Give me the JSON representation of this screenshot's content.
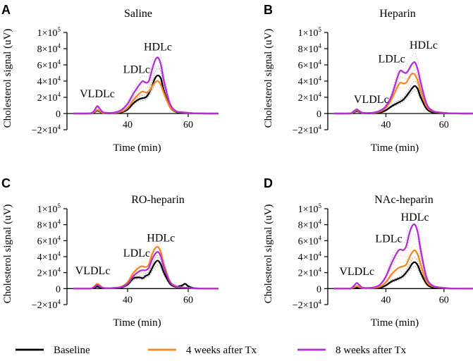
{
  "legend": [
    {
      "label": "Baseline",
      "color": "#000000"
    },
    {
      "label": "4 weeks after Tx",
      "color": "#F7861F"
    },
    {
      "label": "8 weeks after Tx",
      "color": "#B62DD6"
    }
  ],
  "chart_data": [
    {
      "type": "line",
      "letter": "A",
      "title": "Saline",
      "xlabel": "Time (min)",
      "ylabel": "Cholesterol signal (uV)",
      "xlim": [
        20,
        70
      ],
      "ylim": [
        -20000,
        100000
      ],
      "xticks": [
        "40",
        "60"
      ],
      "yticks": [
        {
          "value": -20000,
          "base": "−2×10",
          "exp": "4"
        },
        {
          "value": 0,
          "base": "0",
          "exp": ""
        },
        {
          "value": 20000,
          "base": "2×10",
          "exp": "4"
        },
        {
          "value": 40000,
          "base": "4×10",
          "exp": "4"
        },
        {
          "value": 60000,
          "base": "6×10",
          "exp": "4"
        },
        {
          "value": 80000,
          "base": "8×10",
          "exp": "4"
        },
        {
          "value": 100000,
          "base": "1×10",
          "exp": "5"
        }
      ],
      "annotations": [
        {
          "text": "VLDLc",
          "x": 30,
          "y": 20000
        },
        {
          "text": "LDLc",
          "x": 43,
          "y": 50000
        },
        {
          "text": "HDLc",
          "x": 50,
          "y": 78000
        }
      ],
      "series": [
        {
          "name": "Baseline",
          "color": "#000000",
          "x": [
            22,
            26,
            28,
            29,
            30,
            31,
            32,
            34,
            36,
            38,
            40,
            42,
            44,
            46,
            47,
            48,
            49,
            50,
            51,
            52,
            54,
            56,
            58,
            60,
            62,
            66,
            70
          ],
          "y": [
            0,
            0,
            200,
            1500,
            3500,
            2000,
            500,
            300,
            600,
            1500,
            5000,
            13000,
            18000,
            20000,
            25000,
            33000,
            43000,
            47000,
            43000,
            28000,
            8000,
            2000,
            1000,
            500,
            200,
            0,
            0
          ]
        },
        {
          "name": "4 weeks after Tx",
          "color": "#F7861F",
          "x": [
            22,
            26,
            28,
            29,
            30,
            31,
            32,
            34,
            36,
            38,
            40,
            42,
            44,
            45,
            46,
            47,
            48,
            49,
            50,
            51,
            52,
            54,
            56,
            58,
            60,
            62,
            66,
            70
          ],
          "y": [
            0,
            0,
            300,
            2000,
            4500,
            2500,
            800,
            500,
            1000,
            2500,
            7000,
            17000,
            25000,
            27000,
            26000,
            27000,
            33000,
            38000,
            40000,
            35000,
            25000,
            8000,
            2500,
            1500,
            800,
            300,
            0,
            0
          ]
        },
        {
          "name": "8 weeks after Tx",
          "color": "#B62DD6",
          "x": [
            22,
            26,
            28,
            29,
            30,
            31,
            32,
            34,
            36,
            38,
            40,
            42,
            44,
            45,
            46,
            47,
            48,
            49,
            50,
            51,
            52,
            54,
            56,
            58,
            60,
            62,
            66,
            70
          ],
          "y": [
            0,
            0,
            500,
            3500,
            9000,
            5000,
            1500,
            800,
            1500,
            4500,
            12000,
            25000,
            36000,
            40000,
            38000,
            40000,
            53000,
            65000,
            69000,
            60000,
            40000,
            12000,
            3000,
            1500,
            800,
            300,
            0,
            0
          ]
        }
      ]
    },
    {
      "type": "line",
      "letter": "B",
      "title": "Heparin",
      "xlabel": "Time (min)",
      "ylabel": "Cholesterol signal (uV)",
      "xlim": [
        20,
        70
      ],
      "ylim": [
        -20000,
        100000
      ],
      "xticks": [
        "40",
        "60"
      ],
      "yticks": [
        {
          "value": -20000,
          "base": "−2×10",
          "exp": "4"
        },
        {
          "value": 0,
          "base": "0",
          "exp": ""
        },
        {
          "value": 20000,
          "base": "2×10",
          "exp": "4"
        },
        {
          "value": 40000,
          "base": "4×10",
          "exp": "4"
        },
        {
          "value": 60000,
          "base": "6×10",
          "exp": "4"
        },
        {
          "value": 80000,
          "base": "8×10",
          "exp": "4"
        },
        {
          "value": 100000,
          "base": "1×10",
          "exp": "5"
        }
      ],
      "annotations": [
        {
          "text": "VLDLc",
          "x": 35,
          "y": 13000
        },
        {
          "text": "LDLc",
          "x": 42,
          "y": 63000
        },
        {
          "text": "HDLc",
          "x": 53,
          "y": 80000
        }
      ],
      "series": [
        {
          "name": "Baseline",
          "color": "#000000",
          "x": [
            22,
            26,
            28,
            29,
            30,
            31,
            32,
            34,
            36,
            38,
            40,
            42,
            44,
            46,
            48,
            49,
            50,
            51,
            52,
            54,
            56,
            58,
            60,
            62,
            66,
            70
          ],
          "y": [
            0,
            0,
            200,
            1500,
            3000,
            1800,
            500,
            300,
            600,
            1200,
            4000,
            9000,
            13000,
            17000,
            26000,
            31000,
            34000,
            30000,
            20000,
            6000,
            1500,
            800,
            400,
            200,
            0,
            0
          ]
        },
        {
          "name": "4 weeks after Tx",
          "color": "#F7861F",
          "x": [
            22,
            26,
            28,
            29,
            30,
            31,
            32,
            34,
            36,
            38,
            40,
            42,
            44,
            45,
            46,
            47,
            48,
            49,
            50,
            51,
            52,
            54,
            56,
            58,
            60,
            62,
            66,
            70
          ],
          "y": [
            0,
            0,
            300,
            2000,
            4000,
            2200,
            800,
            500,
            1000,
            2500,
            7000,
            18000,
            33000,
            38000,
            37000,
            38000,
            44000,
            49000,
            48000,
            40000,
            28000,
            9000,
            3000,
            1500,
            800,
            300,
            0,
            0
          ]
        },
        {
          "name": "8 weeks after Tx",
          "color": "#B62DD6",
          "x": [
            22,
            26,
            28,
            29,
            30,
            31,
            32,
            34,
            36,
            38,
            40,
            42,
            44,
            45,
            46,
            47,
            48,
            49,
            50,
            51,
            52,
            54,
            56,
            58,
            60,
            62,
            66,
            70
          ],
          "y": [
            0,
            0,
            400,
            3000,
            5000,
            2800,
            900,
            600,
            1300,
            3500,
            9000,
            22000,
            45000,
            53000,
            51000,
            50000,
            55000,
            61000,
            63000,
            54000,
            38000,
            12000,
            3500,
            1600,
            800,
            300,
            0,
            0
          ]
        }
      ]
    },
    {
      "type": "line",
      "letter": "C",
      "title": "RO-heparin",
      "xlabel": "Time (min)",
      "ylabel": "Cholesterol signal (uV)",
      "xlim": [
        20,
        70
      ],
      "ylim": [
        -20000,
        100000
      ],
      "xticks": [
        "40",
        "60"
      ],
      "yticks": [
        {
          "value": -20000,
          "base": "−2×10",
          "exp": "4"
        },
        {
          "value": 0,
          "base": "0",
          "exp": ""
        },
        {
          "value": 20000,
          "base": "2×10",
          "exp": "4"
        },
        {
          "value": 40000,
          "base": "4×10",
          "exp": "4"
        },
        {
          "value": 60000,
          "base": "6×10",
          "exp": "4"
        },
        {
          "value": 80000,
          "base": "8×10",
          "exp": "4"
        },
        {
          "value": 100000,
          "base": "1×10",
          "exp": "5"
        }
      ],
      "annotations": [
        {
          "text": "VLDLc",
          "x": 28.5,
          "y": 18000
        },
        {
          "text": "LDLc",
          "x": 43,
          "y": 40000
        },
        {
          "text": "HDLc",
          "x": 51,
          "y": 59000
        }
      ],
      "series": [
        {
          "name": "Baseline",
          "color": "#000000",
          "x": [
            22,
            26,
            28,
            29,
            30,
            31,
            32,
            34,
            36,
            38,
            40,
            42,
            44,
            45,
            46,
            47,
            48,
            49,
            50,
            51,
            52,
            54,
            56,
            57,
            58,
            59,
            60,
            62,
            66,
            70
          ],
          "y": [
            0,
            0,
            200,
            1200,
            2500,
            1500,
            500,
            300,
            600,
            1500,
            5000,
            13000,
            14000,
            13000,
            16000,
            18000,
            25000,
            32000,
            35000,
            30000,
            20000,
            6000,
            2000,
            3000,
            4000,
            6000,
            3000,
            500,
            0,
            0
          ]
        },
        {
          "name": "4 weeks after Tx",
          "color": "#F7861F",
          "x": [
            22,
            26,
            28,
            29,
            30,
            31,
            32,
            34,
            36,
            38,
            40,
            42,
            44,
            45,
            46,
            47,
            48,
            49,
            50,
            51,
            52,
            54,
            56,
            58,
            60,
            62,
            66,
            70
          ],
          "y": [
            0,
            0,
            300,
            2500,
            6000,
            3500,
            900,
            500,
            1000,
            2500,
            8000,
            20000,
            27000,
            28000,
            27000,
            30000,
            42000,
            50000,
            52000,
            45000,
            30000,
            9000,
            3000,
            1500,
            1000,
            300,
            0,
            0
          ]
        },
        {
          "name": "8 weeks after Tx",
          "color": "#B62DD6",
          "x": [
            22,
            26,
            28,
            29,
            30,
            31,
            32,
            34,
            36,
            38,
            40,
            42,
            44,
            45,
            46,
            47,
            48,
            49,
            50,
            51,
            52,
            54,
            56,
            58,
            60,
            62,
            66,
            70
          ],
          "y": [
            0,
            0,
            300,
            2000,
            4500,
            2500,
            800,
            500,
            1000,
            2000,
            6000,
            16000,
            22000,
            23000,
            23000,
            26000,
            36000,
            43000,
            46000,
            40000,
            27000,
            8000,
            2500,
            1500,
            800,
            300,
            0,
            0
          ]
        }
      ]
    },
    {
      "type": "line",
      "letter": "D",
      "title": "NAc-heparin",
      "xlabel": "Time (min)",
      "ylabel": "Cholesterol signal (uV)",
      "xlim": [
        20,
        70
      ],
      "ylim": [
        -20000,
        100000
      ],
      "xticks": [
        "40",
        "60"
      ],
      "yticks": [
        {
          "value": -20000,
          "base": "−2×10",
          "exp": "4"
        },
        {
          "value": 0,
          "base": "0",
          "exp": ""
        },
        {
          "value": 20000,
          "base": "2×10",
          "exp": "4"
        },
        {
          "value": 40000,
          "base": "4×10",
          "exp": "4"
        },
        {
          "value": 60000,
          "base": "6×10",
          "exp": "4"
        },
        {
          "value": 80000,
          "base": "8×10",
          "exp": "4"
        },
        {
          "value": 100000,
          "base": "1×10",
          "exp": "5"
        }
      ],
      "annotations": [
        {
          "text": "VLDLc",
          "x": 30,
          "y": 17000
        },
        {
          "text": "LDLc",
          "x": 41,
          "y": 58000
        },
        {
          "text": "HDLc",
          "x": 50,
          "y": 85000
        }
      ],
      "series": [
        {
          "name": "Baseline",
          "color": "#000000",
          "x": [
            22,
            26,
            28,
            29,
            30,
            31,
            32,
            34,
            36,
            38,
            40,
            42,
            44,
            46,
            48,
            49,
            50,
            51,
            52,
            54,
            56,
            58,
            60,
            62,
            66,
            70
          ],
          "y": [
            0,
            0,
            200,
            800,
            1500,
            1000,
            400,
            300,
            500,
            1000,
            4000,
            9000,
            12000,
            16000,
            25000,
            31000,
            33000,
            29000,
            20000,
            6000,
            1500,
            800,
            400,
            200,
            0,
            0
          ]
        },
        {
          "name": "4 weeks after Tx",
          "color": "#F7861F",
          "x": [
            22,
            26,
            28,
            29,
            30,
            31,
            32,
            34,
            36,
            38,
            40,
            42,
            44,
            45,
            46,
            47,
            48,
            49,
            50,
            51,
            52,
            54,
            56,
            58,
            60,
            62,
            66,
            70
          ],
          "y": [
            0,
            0,
            300,
            1500,
            3000,
            1800,
            600,
            500,
            1000,
            2500,
            8000,
            18000,
            25000,
            27000,
            28000,
            30000,
            38000,
            45000,
            48000,
            42000,
            30000,
            9000,
            3000,
            1500,
            800,
            300,
            0,
            0
          ]
        },
        {
          "name": "8 weeks after Tx",
          "color": "#B62DD6",
          "x": [
            22,
            26,
            28,
            29,
            30,
            31,
            32,
            34,
            36,
            38,
            40,
            42,
            44,
            45,
            46,
            47,
            48,
            49,
            50,
            51,
            52,
            54,
            56,
            58,
            60,
            62,
            66,
            70
          ],
          "y": [
            0,
            0,
            500,
            3500,
            7000,
            4000,
            1200,
            800,
            1800,
            5000,
            15000,
            32000,
            46000,
            49000,
            48000,
            53000,
            68000,
            78000,
            80000,
            70000,
            48000,
            14000,
            4000,
            1800,
            900,
            300,
            0,
            0
          ]
        }
      ]
    }
  ]
}
